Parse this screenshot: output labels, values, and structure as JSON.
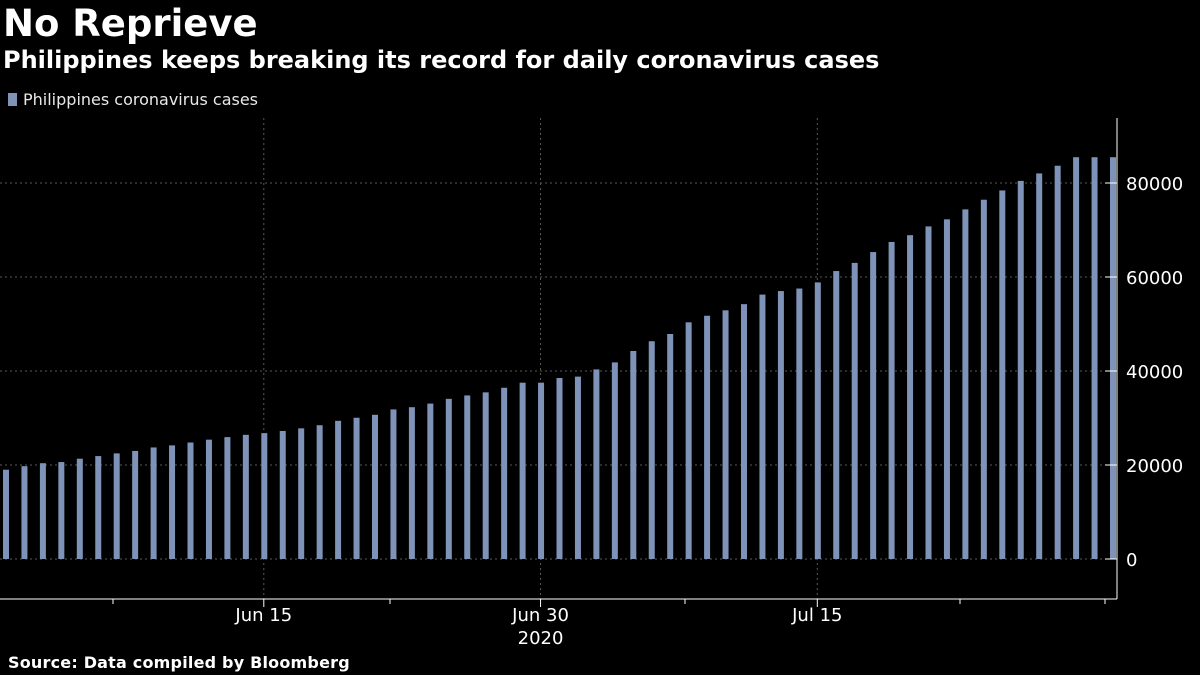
{
  "title": "No Reprieve",
  "subtitle": "Philippines keeps breaking its record for daily coronavirus cases",
  "source": "Source: Data compiled by Bloomberg",
  "colors": {
    "background": "#000000",
    "bar": "#7f93b8",
    "text": "#ffffff",
    "grid": "#5a5a5a"
  },
  "chart_data": {
    "type": "bar",
    "title": "No Reprieve",
    "subtitle": "Philippines keeps breaking its record for daily coronavirus cases",
    "xlabel": "",
    "ylabel": "",
    "ylim": [
      0,
      90000
    ],
    "y_ticks": [
      0,
      20000,
      40000,
      60000,
      80000
    ],
    "y_tick_labels": [
      "0",
      "20000",
      "40000",
      "60000",
      "80000"
    ],
    "x_tick_labels": [
      "Jun 15",
      "Jun 30",
      "Jul 15"
    ],
    "x_year_label": "2020",
    "grid": true,
    "legend_position": "top-left",
    "series": [
      {
        "name": "Philippines coronavirus cases",
        "color": "#7f93b8",
        "x": [
          "2020-06-01",
          "2020-06-02",
          "2020-06-03",
          "2020-06-04",
          "2020-06-05",
          "2020-06-06",
          "2020-06-07",
          "2020-06-08",
          "2020-06-09",
          "2020-06-10",
          "2020-06-11",
          "2020-06-12",
          "2020-06-13",
          "2020-06-14",
          "2020-06-15",
          "2020-06-16",
          "2020-06-17",
          "2020-06-18",
          "2020-06-19",
          "2020-06-20",
          "2020-06-21",
          "2020-06-22",
          "2020-06-23",
          "2020-06-24",
          "2020-06-25",
          "2020-06-26",
          "2020-06-27",
          "2020-06-28",
          "2020-06-29",
          "2020-06-30",
          "2020-07-01",
          "2020-07-02",
          "2020-07-03",
          "2020-07-04",
          "2020-07-05",
          "2020-07-06",
          "2020-07-07",
          "2020-07-08",
          "2020-07-09",
          "2020-07-10",
          "2020-07-11",
          "2020-07-12",
          "2020-07-13",
          "2020-07-14",
          "2020-07-15",
          "2020-07-16",
          "2020-07-17",
          "2020-07-18",
          "2020-07-19",
          "2020-07-20",
          "2020-07-21",
          "2020-07-22",
          "2020-07-23",
          "2020-07-24",
          "2020-07-25",
          "2020-07-26",
          "2020-07-27",
          "2020-07-28",
          "2020-07-29",
          "2020-07-30",
          "2020-07-31"
        ],
        "values": [
          18997,
          19748,
          20382,
          20626,
          21340,
          21895,
          22474,
          22992,
          23732,
          24175,
          24787,
          25392,
          25930,
          26420,
          26781,
          27238,
          27799,
          28459,
          29400,
          30052,
          30682,
          31825,
          32295,
          33069,
          34073,
          34803,
          35455,
          36438,
          37514,
          37514,
          38511,
          38805,
          40336,
          41830,
          44254,
          46333,
          47873,
          50359,
          51754,
          52914,
          54222,
          56259,
          57006,
          57545,
          58850,
          61266,
          63001,
          65304,
          67456,
          68898,
          70764,
          72269,
          74390,
          76444,
          78412,
          80448,
          82040,
          83673,
          85486,
          85486,
          85486
        ]
      }
    ]
  }
}
